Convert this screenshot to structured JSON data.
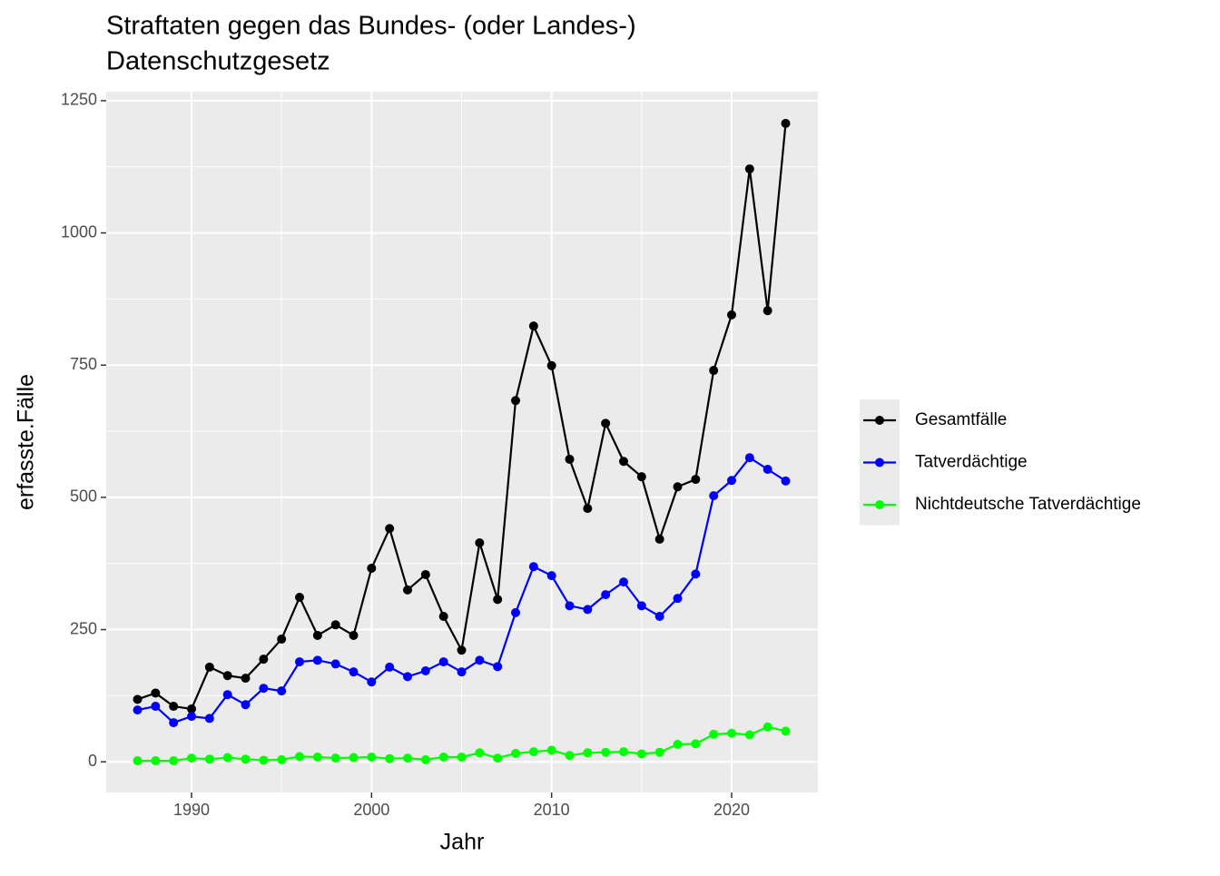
{
  "chart_data": {
    "type": "line",
    "title": "Straftaten gegen das Bundes- (oder Landes-)",
    "subtitle": "Datenschutzgesetz",
    "x_label": "Jahr",
    "y_label": "erfasste.Fälle",
    "x": [
      1987,
      1988,
      1989,
      1990,
      1991,
      1992,
      1993,
      1994,
      1995,
      1996,
      1997,
      1998,
      1999,
      2000,
      2001,
      2002,
      2003,
      2004,
      2005,
      2006,
      2007,
      2008,
      2009,
      2010,
      2011,
      2012,
      2013,
      2014,
      2015,
      2016,
      2017,
      2018,
      2019,
      2020,
      2021,
      2022,
      2023
    ],
    "series": [
      {
        "name": "Gesamtfälle",
        "color": "#000000",
        "values": [
          118,
          130,
          105,
          100,
          179,
          163,
          158,
          194,
          232,
          311,
          239,
          259,
          239,
          366,
          441,
          325,
          354,
          275,
          211,
          414,
          307,
          683,
          824,
          749,
          572,
          479,
          640,
          568,
          539,
          421,
          520,
          534,
          740,
          845,
          1121,
          853,
          1207
        ]
      },
      {
        "name": "Tatverdächtige",
        "color": "#0000ff",
        "values": [
          98,
          105,
          74,
          86,
          82,
          127,
          108,
          139,
          134,
          189,
          192,
          185,
          170,
          151,
          179,
          161,
          172,
          189,
          170,
          192,
          180,
          282,
          369,
          352,
          295,
          288,
          316,
          340,
          295,
          275,
          309,
          355,
          503,
          532,
          575,
          553,
          531
        ]
      },
      {
        "name": "Nichtdeutsche Tatverdächtige",
        "color": "#00ff00",
        "values": [
          2,
          2,
          2,
          7,
          5,
          8,
          5,
          3,
          4,
          10,
          9,
          7,
          8,
          9,
          6,
          7,
          4,
          9,
          9,
          17,
          7,
          16,
          19,
          22,
          12,
          17,
          18,
          19,
          15,
          18,
          33,
          34,
          52,
          54,
          51,
          66,
          58
        ]
      }
    ],
    "xlim": [
      1985.26,
      2024.79
    ],
    "xticks": [
      1990,
      2000,
      2010,
      2020
    ],
    "ylim": [
      -58,
      1267
    ],
    "yticks": [
      0,
      250,
      500,
      750,
      1000,
      1250
    ],
    "grid": true,
    "legend": "right"
  }
}
